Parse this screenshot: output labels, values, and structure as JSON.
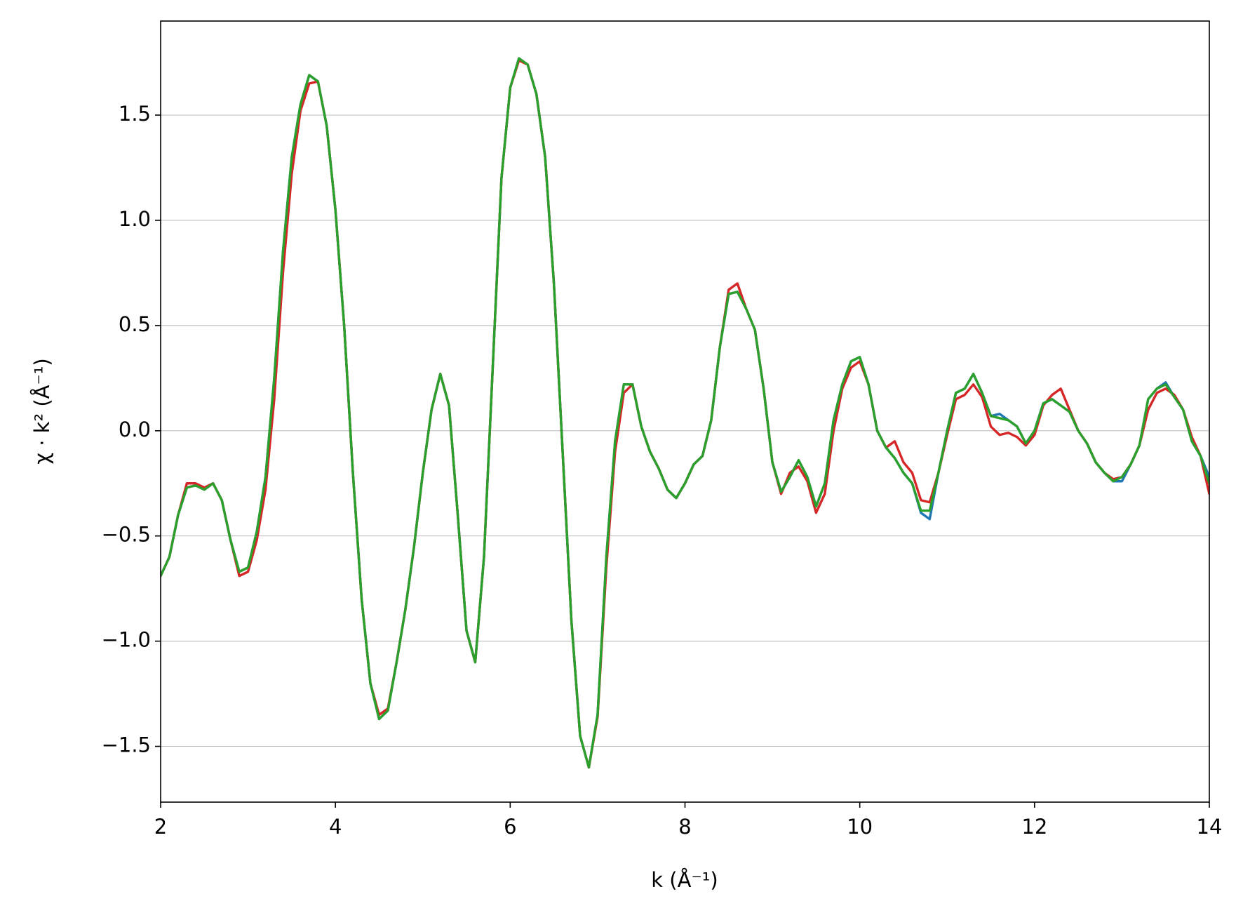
{
  "chart_data": {
    "type": "line",
    "xlabel": "k (Å⁻¹)",
    "ylabel": "χ · k² (Å⁻¹)",
    "xlim": [
      2,
      14
    ],
    "ylim": [
      -1.765,
      1.947
    ],
    "xticks": [
      2,
      4,
      6,
      8,
      10,
      12,
      14
    ],
    "yticks": [
      {
        "value": -1.5,
        "label": "−1.5"
      },
      {
        "value": -1.0,
        "label": "−1.0"
      },
      {
        "value": -0.5,
        "label": "−0.5"
      },
      {
        "value": 0.0,
        "label": "0.0"
      },
      0.5,
      {
        "value": 1.0,
        "label": "1.0"
      },
      1.5
    ],
    "grid": "y",
    "x": [
      2.0,
      2.1,
      2.2,
      2.3,
      2.4,
      2.5,
      2.6,
      2.7,
      2.8,
      2.9,
      3.0,
      3.1,
      3.2,
      3.3,
      3.4,
      3.5,
      3.6,
      3.7,
      3.8,
      3.9,
      4.0,
      4.1,
      4.2,
      4.3,
      4.4,
      4.5,
      4.6,
      4.7,
      4.8,
      4.9,
      5.0,
      5.1,
      5.2,
      5.3,
      5.4,
      5.5,
      5.6,
      5.7,
      5.8,
      5.9,
      6.0,
      6.1,
      6.2,
      6.3,
      6.4,
      6.5,
      6.6,
      6.7,
      6.8,
      6.9,
      7.0,
      7.1,
      7.2,
      7.3,
      7.4,
      7.5,
      7.6,
      7.7,
      7.8,
      7.9,
      8.0,
      8.1,
      8.2,
      8.3,
      8.4,
      8.5,
      8.6,
      8.7,
      8.8,
      8.9,
      9.0,
      9.1,
      9.2,
      9.3,
      9.4,
      9.5,
      9.6,
      9.7,
      9.8,
      9.9,
      10.0,
      10.1,
      10.2,
      10.3,
      10.4,
      10.5,
      10.6,
      10.7,
      10.8,
      10.9,
      11.0,
      11.1,
      11.2,
      11.3,
      11.4,
      11.5,
      11.6,
      11.7,
      11.8,
      11.9,
      12.0,
      12.1,
      12.2,
      12.3,
      12.4,
      12.5,
      12.6,
      12.7,
      12.8,
      12.9,
      13.0,
      13.1,
      13.2,
      13.3,
      13.4,
      13.5,
      13.6,
      13.7,
      13.8,
      13.9,
      14.0
    ],
    "series": [
      {
        "color": "#1f77b4",
        "values": [
          -0.69,
          -0.6,
          -0.4,
          -0.27,
          -0.26,
          -0.28,
          -0.25,
          -0.33,
          -0.52,
          -0.67,
          -0.65,
          -0.48,
          -0.22,
          0.25,
          0.85,
          1.3,
          1.55,
          1.69,
          1.66,
          1.45,
          1.05,
          0.5,
          -0.2,
          -0.8,
          -1.2,
          -1.37,
          -1.33,
          -1.1,
          -0.85,
          -0.55,
          -0.2,
          0.1,
          0.27,
          0.12,
          -0.4,
          -0.95,
          -1.1,
          -0.6,
          0.3,
          1.2,
          1.63,
          1.77,
          1.74,
          1.6,
          1.3,
          0.7,
          -0.1,
          -0.9,
          -1.45,
          -1.6,
          -1.35,
          -0.6,
          -0.05,
          0.22,
          0.22,
          0.02,
          -0.1,
          -0.18,
          -0.28,
          -0.32,
          -0.25,
          -0.16,
          -0.12,
          0.05,
          0.4,
          0.65,
          0.66,
          0.58,
          0.48,
          0.2,
          -0.15,
          -0.29,
          -0.22,
          -0.14,
          -0.22,
          -0.36,
          -0.25,
          0.05,
          0.22,
          0.33,
          0.35,
          0.22,
          0.0,
          -0.08,
          -0.13,
          -0.2,
          -0.25,
          -0.39,
          -0.42,
          -0.2,
          0.0,
          0.18,
          0.2,
          0.27,
          0.18,
          0.07,
          0.08,
          0.05,
          0.02,
          -0.06,
          0.0,
          0.13,
          0.15,
          0.12,
          0.09,
          0.0,
          -0.06,
          -0.15,
          -0.2,
          -0.24,
          -0.24,
          -0.16,
          -0.07,
          0.15,
          0.2,
          0.23,
          0.16,
          0.1,
          -0.05,
          -0.12,
          -0.22
        ]
      },
      {
        "color": "#d62728",
        "values": [
          -0.69,
          -0.6,
          -0.4,
          -0.25,
          -0.25,
          -0.27,
          -0.25,
          -0.33,
          -0.52,
          -0.69,
          -0.67,
          -0.52,
          -0.28,
          0.15,
          0.75,
          1.22,
          1.52,
          1.65,
          1.66,
          1.45,
          1.05,
          0.5,
          -0.2,
          -0.8,
          -1.2,
          -1.35,
          -1.32,
          -1.1,
          -0.85,
          -0.55,
          -0.2,
          0.1,
          0.27,
          0.12,
          -0.4,
          -0.95,
          -1.1,
          -0.6,
          0.3,
          1.2,
          1.63,
          1.76,
          1.74,
          1.6,
          1.3,
          0.7,
          -0.1,
          -0.9,
          -1.45,
          -1.6,
          -1.36,
          -0.65,
          -0.1,
          0.18,
          0.22,
          0.02,
          -0.1,
          -0.18,
          -0.28,
          -0.32,
          -0.25,
          -0.16,
          -0.12,
          0.05,
          0.4,
          0.67,
          0.7,
          0.58,
          0.48,
          0.2,
          -0.15,
          -0.3,
          -0.2,
          -0.17,
          -0.24,
          -0.39,
          -0.3,
          0.0,
          0.2,
          0.3,
          0.33,
          0.22,
          0.0,
          -0.08,
          -0.05,
          -0.15,
          -0.2,
          -0.33,
          -0.34,
          -0.2,
          -0.02,
          0.15,
          0.17,
          0.22,
          0.16,
          0.02,
          -0.02,
          -0.01,
          -0.03,
          -0.07,
          -0.02,
          0.12,
          0.17,
          0.2,
          0.1,
          0.0,
          -0.06,
          -0.15,
          -0.2,
          -0.23,
          -0.22,
          -0.16,
          -0.07,
          0.1,
          0.18,
          0.2,
          0.17,
          0.1,
          -0.03,
          -0.12,
          -0.3
        ]
      },
      {
        "color": "#2ca02c",
        "values": [
          -0.69,
          -0.6,
          -0.4,
          -0.27,
          -0.26,
          -0.28,
          -0.25,
          -0.33,
          -0.52,
          -0.67,
          -0.65,
          -0.48,
          -0.22,
          0.25,
          0.85,
          1.3,
          1.55,
          1.69,
          1.66,
          1.45,
          1.05,
          0.5,
          -0.2,
          -0.8,
          -1.2,
          -1.37,
          -1.33,
          -1.1,
          -0.85,
          -0.55,
          -0.2,
          0.1,
          0.27,
          0.12,
          -0.4,
          -0.95,
          -1.1,
          -0.6,
          0.3,
          1.2,
          1.63,
          1.77,
          1.74,
          1.6,
          1.3,
          0.7,
          -0.1,
          -0.9,
          -1.45,
          -1.6,
          -1.35,
          -0.6,
          -0.05,
          0.22,
          0.22,
          0.02,
          -0.1,
          -0.18,
          -0.28,
          -0.32,
          -0.25,
          -0.16,
          -0.12,
          0.05,
          0.4,
          0.65,
          0.66,
          0.58,
          0.48,
          0.2,
          -0.15,
          -0.29,
          -0.22,
          -0.14,
          -0.22,
          -0.36,
          -0.25,
          0.05,
          0.22,
          0.33,
          0.35,
          0.22,
          0.0,
          -0.08,
          -0.13,
          -0.2,
          -0.25,
          -0.38,
          -0.38,
          -0.2,
          0.0,
          0.18,
          0.2,
          0.27,
          0.18,
          0.07,
          0.06,
          0.05,
          0.02,
          -0.06,
          0.0,
          0.13,
          0.15,
          0.12,
          0.09,
          0.0,
          -0.06,
          -0.15,
          -0.2,
          -0.24,
          -0.22,
          -0.16,
          -0.07,
          0.15,
          0.2,
          0.22,
          0.16,
          0.1,
          -0.05,
          -0.12,
          -0.25
        ]
      }
    ]
  }
}
